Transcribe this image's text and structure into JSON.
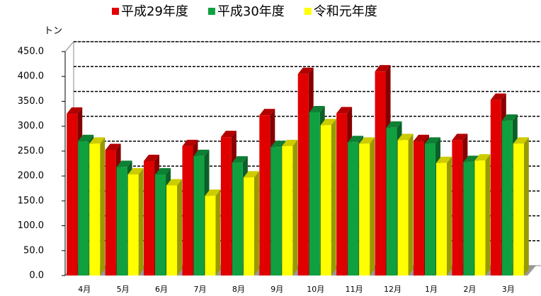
{
  "chart_data": {
    "type": "bar3d",
    "y_label": "トン",
    "categories": [
      "4月",
      "5月",
      "6月",
      "7月",
      "8月",
      "9月",
      "10月",
      "11月",
      "12月",
      "1月",
      "2月",
      "3月"
    ],
    "series": [
      {
        "name": "平成29年度",
        "color": "#e00000",
        "values": [
          325,
          252,
          230,
          260,
          278,
          322,
          405,
          326,
          410,
          270,
          272,
          353
        ]
      },
      {
        "name": "平成30年度",
        "color": "#10a040",
        "values": [
          270,
          218,
          203,
          240,
          227,
          258,
          328,
          268,
          297,
          265,
          228,
          311
        ]
      },
      {
        "name": "令和元年度",
        "color": "#ffff00",
        "values": [
          265,
          203,
          181,
          160,
          197,
          260,
          302,
          265,
          272,
          226,
          231,
          265
        ]
      }
    ],
    "ylim": [
      0,
      450
    ],
    "yticks": [
      {
        "value": 0,
        "label": "0.0"
      },
      {
        "value": 50,
        "label": "50.0"
      },
      {
        "value": 100,
        "label": "100.0"
      },
      {
        "value": 150,
        "label": "150.0"
      },
      {
        "value": 200,
        "label": "200.0"
      },
      {
        "value": 250,
        "label": "250.0"
      },
      {
        "value": 300,
        "label": "300.0"
      },
      {
        "value": 350,
        "label": "350.0"
      },
      {
        "value": 400,
        "label": "400.0"
      },
      {
        "value": 450,
        "label": "450.0"
      }
    ],
    "grid": true
  }
}
